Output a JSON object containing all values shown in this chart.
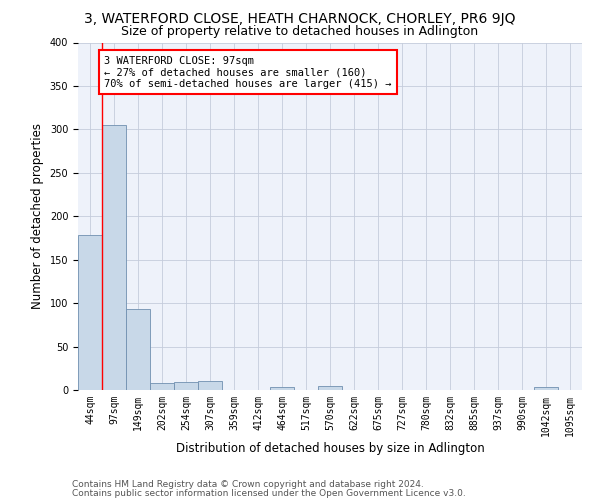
{
  "title_line1": "3, WATERFORD CLOSE, HEATH CHARNOCK, CHORLEY, PR6 9JQ",
  "title_line2": "Size of property relative to detached houses in Adlington",
  "xlabel": "Distribution of detached houses by size in Adlington",
  "ylabel": "Number of detached properties",
  "categories": [
    "44sqm",
    "97sqm",
    "149sqm",
    "202sqm",
    "254sqm",
    "307sqm",
    "359sqm",
    "412sqm",
    "464sqm",
    "517sqm",
    "570sqm",
    "622sqm",
    "675sqm",
    "727sqm",
    "780sqm",
    "832sqm",
    "885sqm",
    "937sqm",
    "990sqm",
    "1042sqm",
    "1095sqm"
  ],
  "values": [
    178,
    305,
    93,
    8,
    9,
    10,
    0,
    0,
    4,
    0,
    5,
    0,
    0,
    0,
    0,
    0,
    0,
    0,
    0,
    4,
    0
  ],
  "bar_color": "#c8d8e8",
  "bar_edge_color": "#7090b0",
  "red_line_x": 0.5,
  "annotation_text": "3 WATERFORD CLOSE: 97sqm\n← 27% of detached houses are smaller (160)\n70% of semi-detached houses are larger (415) →",
  "annotation_box_color": "white",
  "annotation_box_edge_color": "red",
  "red_line_color": "red",
  "ylim": [
    0,
    400
  ],
  "yticks": [
    0,
    50,
    100,
    150,
    200,
    250,
    300,
    350,
    400
  ],
  "footer_line1": "Contains HM Land Registry data © Crown copyright and database right 2024.",
  "footer_line2": "Contains public sector information licensed under the Open Government Licence v3.0.",
  "bg_color": "#eef2fa",
  "grid_color": "#c5ccdc",
  "title_fontsize": 10,
  "subtitle_fontsize": 9,
  "axis_label_fontsize": 8.5,
  "tick_fontsize": 7,
  "annotation_fontsize": 7.5,
  "footer_fontsize": 6.5
}
